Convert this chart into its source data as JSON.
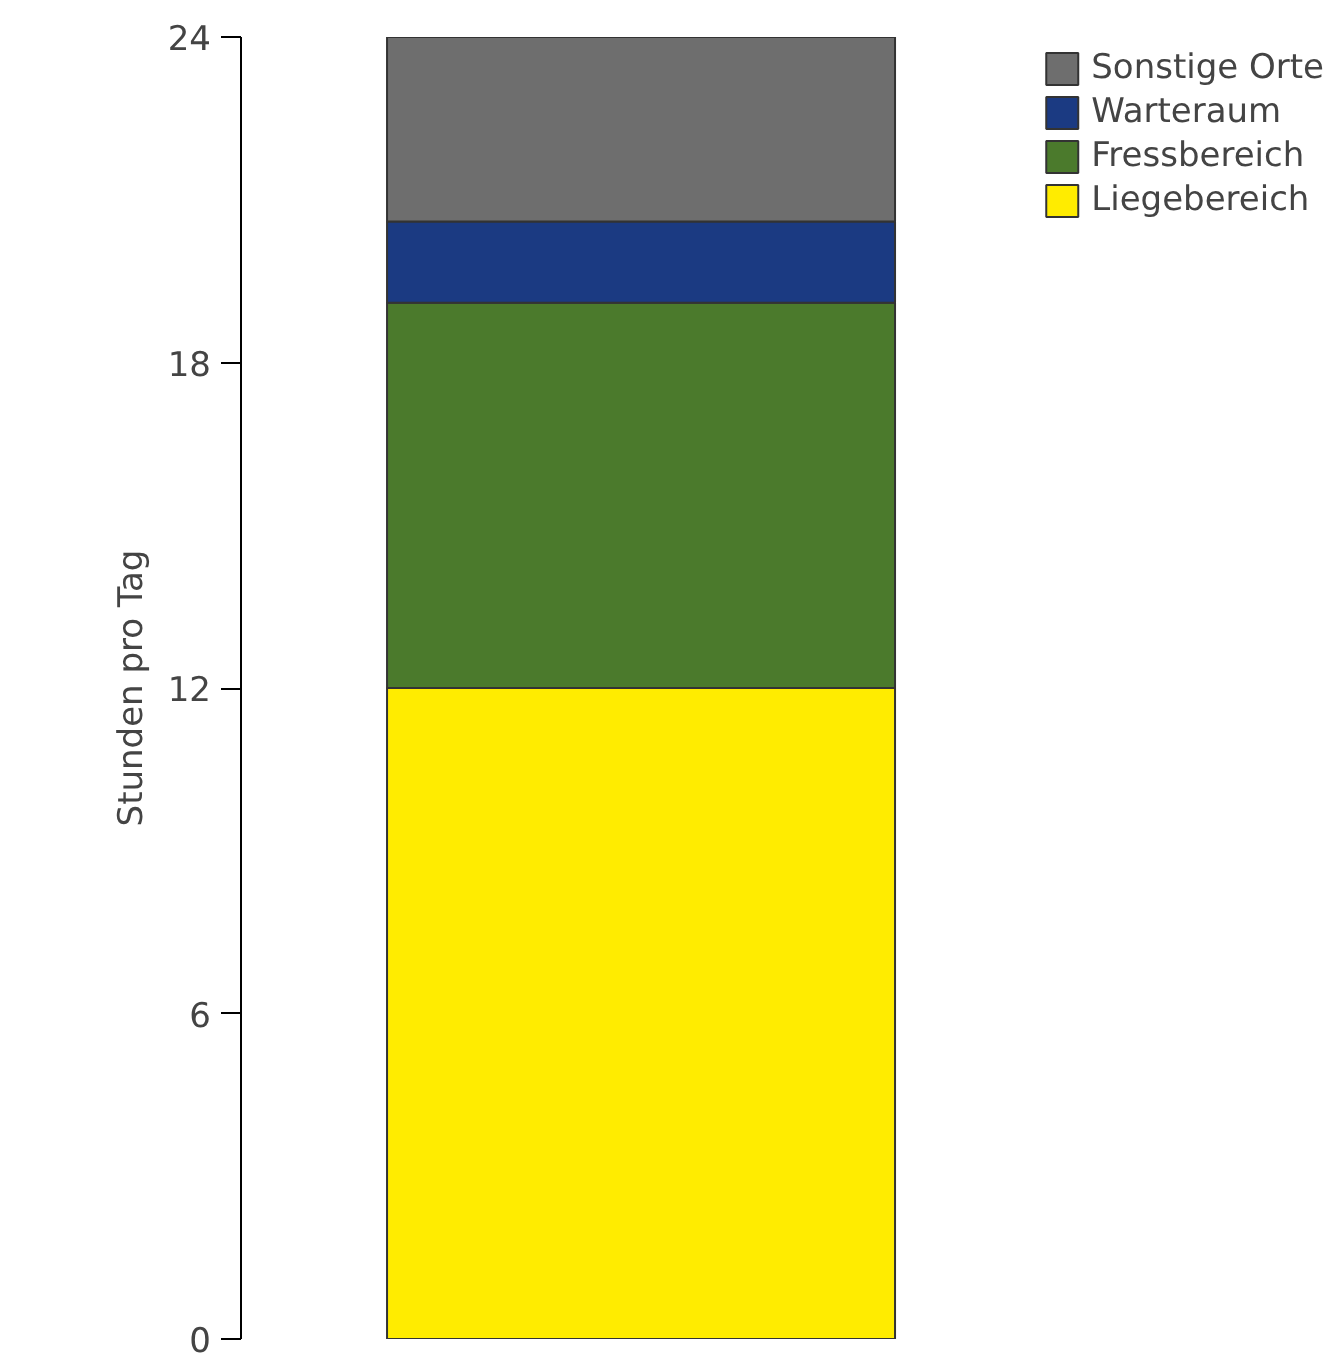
{
  "chart_data": {
    "type": "bar",
    "stacked": true,
    "ylabel": "Stunden pro Tag",
    "categories": [
      null
    ],
    "ylim": [
      0,
      24
    ],
    "yticks": [
      0,
      6,
      12,
      18,
      24
    ],
    "grid": false,
    "legend": "top right",
    "series": [
      {
        "name": "Liegebereich",
        "color": "#ffec00",
        "values": [
          12
        ]
      },
      {
        "name": "Fressbereich",
        "color": "#4b7a2c",
        "values": [
          7.1
        ]
      },
      {
        "name": "Warteraum",
        "color": "#1b3a82",
        "values": [
          1.5
        ]
      },
      {
        "name": "Sonstige Orte",
        "color": "#6e6e6e",
        "values": [
          3.4
        ]
      }
    ]
  }
}
